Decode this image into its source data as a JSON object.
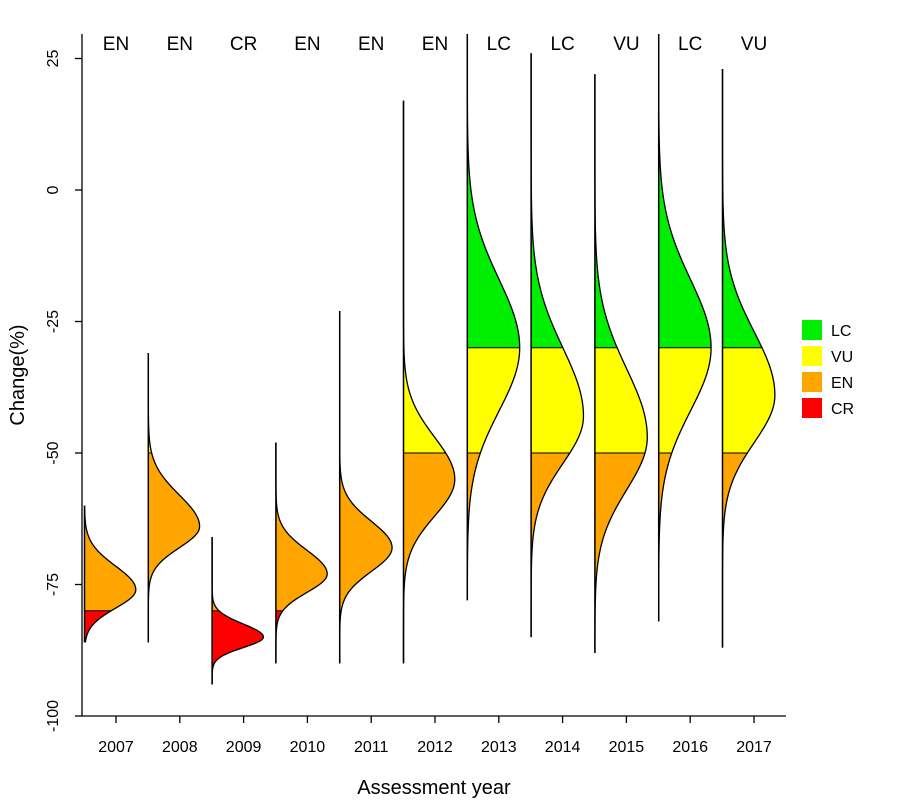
{
  "chart_data": {
    "type": "violin",
    "xlabel": "Assessment year",
    "ylabel": "Change(%)",
    "ylim": [
      -100,
      30
    ],
    "yticks": [
      25,
      0,
      -25,
      -50,
      -75,
      -100
    ],
    "categories": [
      "2007",
      "2008",
      "2009",
      "2010",
      "2011",
      "2012",
      "2013",
      "2014",
      "2015",
      "2016",
      "2017"
    ],
    "status_labels": [
      "EN",
      "EN",
      "CR",
      "EN",
      "EN",
      "EN",
      "LC",
      "LC",
      "VU",
      "LC",
      "VU"
    ],
    "distributions": [
      {
        "year": "2007",
        "mode": -76,
        "sd_lower": 3.5,
        "sd_upper": 4.5,
        "min": -86,
        "max": -60,
        "peak_width": 0.95
      },
      {
        "year": "2008",
        "mode": -64,
        "sd_lower": 4,
        "sd_upper": 6,
        "min": -86,
        "max": -31,
        "peak_width": 0.95
      },
      {
        "year": "2009",
        "mode": -85,
        "sd_lower": 2,
        "sd_upper": 2.5,
        "min": -94,
        "max": -66,
        "peak_width": 0.95
      },
      {
        "year": "2010",
        "mode": -73,
        "sd_lower": 3.5,
        "sd_upper": 4.5,
        "min": -90,
        "max": -48,
        "peak_width": 0.95
      },
      {
        "year": "2011",
        "mode": -68,
        "sd_lower": 4.5,
        "sd_upper": 5,
        "min": -90,
        "max": -23,
        "peak_width": 0.97
      },
      {
        "year": "2012",
        "mode": -55,
        "sd_lower": 7,
        "sd_upper": 8,
        "min": -90,
        "max": 17,
        "peak_width": 0.95
      },
      {
        "year": "2013",
        "mode": -30,
        "sd_lower": 12,
        "sd_upper": 13,
        "min": -78,
        "max": 30,
        "peak_width": 0.97
      },
      {
        "year": "2014",
        "mode": -43,
        "sd_lower": 9,
        "sd_upper": 13,
        "min": -85,
        "max": 26,
        "peak_width": 0.97
      },
      {
        "year": "2015",
        "mode": -47,
        "sd_lower": 10,
        "sd_upper": 13,
        "min": -88,
        "max": 22,
        "peak_width": 0.97
      },
      {
        "year": "2016",
        "mode": -30,
        "sd_lower": 12,
        "sd_upper": 13,
        "min": -82,
        "max": 30,
        "peak_width": 0.97
      },
      {
        "year": "2017",
        "mode": -39,
        "sd_lower": 9,
        "sd_upper": 12,
        "min": -87,
        "max": 23,
        "peak_width": 0.97
      }
    ],
    "thresholds": [
      {
        "category": "LC",
        "from": -30,
        "to": 30,
        "color": "#00ee00"
      },
      {
        "category": "VU",
        "from": -50,
        "to": -30,
        "color": "#ffff00"
      },
      {
        "category": "EN",
        "from": -80,
        "to": -50,
        "color": "#ffa500"
      },
      {
        "category": "CR",
        "from": -100,
        "to": -80,
        "color": "#ff0000"
      }
    ],
    "legend": {
      "position": "right",
      "entries": [
        {
          "label": "LC",
          "color": "#00ee00"
        },
        {
          "label": "VU",
          "color": "#ffff00"
        },
        {
          "label": "EN",
          "color": "#ffa500"
        },
        {
          "label": "CR",
          "color": "#ff0000"
        }
      ]
    },
    "grid": false
  }
}
